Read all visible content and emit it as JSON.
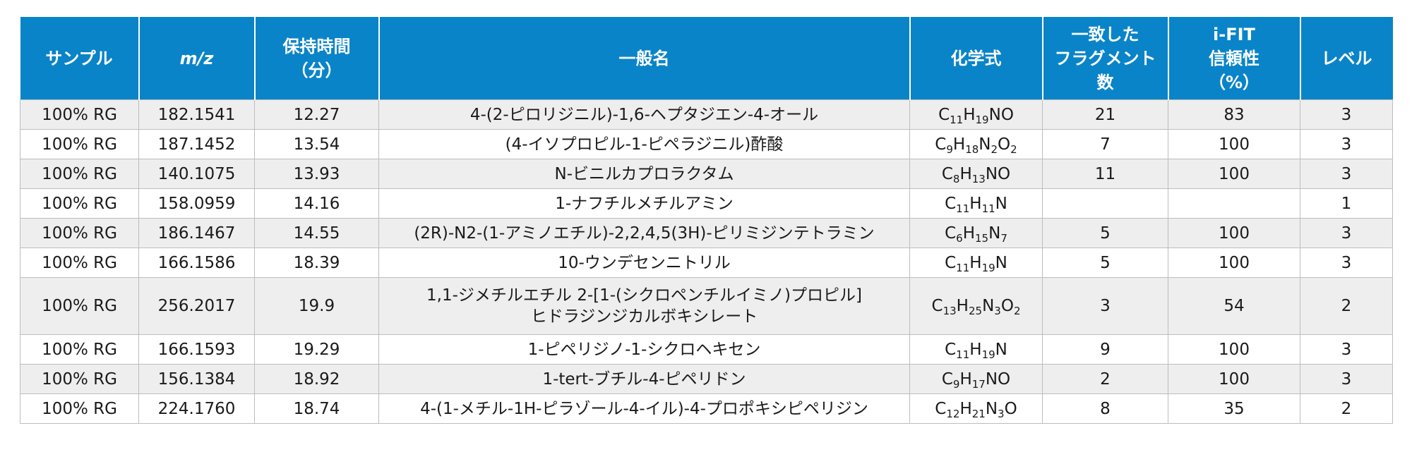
{
  "table": {
    "headers": [
      {
        "key": "sample",
        "lines": [
          "サンプル"
        ]
      },
      {
        "key": "mz",
        "lines": [
          "m/z"
        ]
      },
      {
        "key": "rt",
        "lines": [
          "保持時間",
          "（分）"
        ]
      },
      {
        "key": "name",
        "lines": [
          "一般名"
        ]
      },
      {
        "key": "formula",
        "lines": [
          "化学式"
        ]
      },
      {
        "key": "fragments",
        "lines": [
          "一致した",
          "フラグメント数"
        ]
      },
      {
        "key": "ifit",
        "lines": [
          "i-FIT",
          "信頼性",
          "（%）"
        ]
      },
      {
        "key": "level",
        "lines": [
          "レベル"
        ]
      }
    ],
    "rows": [
      {
        "sample": "100% RG",
        "mz": "182.1541",
        "rt": "12.27",
        "name": [
          "4-(2-ピロリジニル)-1,6-ヘプタジエン-4-オール"
        ],
        "formula": [
          [
            "C",
            ""
          ],
          [
            "11",
            "sub"
          ],
          [
            "H",
            ""
          ],
          [
            "19",
            "sub"
          ],
          [
            "NO",
            ""
          ]
        ],
        "fragments": "21",
        "ifit": "83",
        "level": "3"
      },
      {
        "sample": "100% RG",
        "mz": "187.1452",
        "rt": "13.54",
        "name": [
          "(4-イソプロピル-1-ピペラジニル)酢酸"
        ],
        "formula": [
          [
            "C",
            ""
          ],
          [
            "9",
            "sub"
          ],
          [
            "H",
            ""
          ],
          [
            "18",
            "sub"
          ],
          [
            "N",
            ""
          ],
          [
            "2",
            "sub"
          ],
          [
            "O",
            ""
          ],
          [
            "2",
            "sub"
          ]
        ],
        "fragments": "7",
        "ifit": "100",
        "level": "3"
      },
      {
        "sample": "100% RG",
        "mz": "140.1075",
        "rt": "13.93",
        "name": [
          "N-ビニルカプロラクタム"
        ],
        "formula": [
          [
            "C",
            ""
          ],
          [
            "8",
            "sub"
          ],
          [
            "H",
            ""
          ],
          [
            "13",
            "sub"
          ],
          [
            "NO",
            ""
          ]
        ],
        "fragments": "11",
        "ifit": "100",
        "level": "3"
      },
      {
        "sample": "100% RG",
        "mz": "158.0959",
        "rt": "14.16",
        "name": [
          "1-ナフチルメチルアミン"
        ],
        "formula": [
          [
            "C",
            ""
          ],
          [
            "11",
            "sub"
          ],
          [
            "H",
            ""
          ],
          [
            "11",
            "sub"
          ],
          [
            "N",
            ""
          ]
        ],
        "fragments": "",
        "ifit": "",
        "level": "1"
      },
      {
        "sample": "100% RG",
        "mz": "186.1467",
        "rt": "14.55",
        "name": [
          "(2R)-N2-(1-アミノエチル)-2,2,4,5(3H)-ピリミジンテトラミン"
        ],
        "formula": [
          [
            "C",
            ""
          ],
          [
            "6",
            "sub"
          ],
          [
            "H",
            ""
          ],
          [
            "15",
            "sub"
          ],
          [
            "N",
            ""
          ],
          [
            "7",
            "sub"
          ]
        ],
        "fragments": "5",
        "ifit": "100",
        "level": "3"
      },
      {
        "sample": "100% RG",
        "mz": "166.1586",
        "rt": "18.39",
        "name": [
          "10-ウンデセンニトリル"
        ],
        "formula": [
          [
            "C",
            ""
          ],
          [
            "11",
            "sub"
          ],
          [
            "H",
            ""
          ],
          [
            "19",
            "sub"
          ],
          [
            "N",
            ""
          ]
        ],
        "fragments": "5",
        "ifit": "100",
        "level": "3"
      },
      {
        "sample": "100% RG",
        "mz": "256.2017",
        "rt": "19.9",
        "name": [
          "1,1-ジメチルエチル 2-[1-(シクロペンチルイミノ)プロピル]",
          "ヒドラジンジカルボキシレート"
        ],
        "formula": [
          [
            "C",
            ""
          ],
          [
            "13",
            "sub"
          ],
          [
            "H",
            ""
          ],
          [
            "25",
            "sub"
          ],
          [
            "N",
            ""
          ],
          [
            "3",
            "sub"
          ],
          [
            "O",
            ""
          ],
          [
            "2",
            "sub"
          ]
        ],
        "fragments": "3",
        "ifit": "54",
        "level": "2"
      },
      {
        "sample": "100% RG",
        "mz": "166.1593",
        "rt": "19.29",
        "name": [
          "1-ピペリジノ-1-シクロヘキセン"
        ],
        "formula": [
          [
            "C",
            ""
          ],
          [
            "11",
            "sub"
          ],
          [
            "H",
            ""
          ],
          [
            "19",
            "sub"
          ],
          [
            "N",
            ""
          ]
        ],
        "fragments": "9",
        "ifit": "100",
        "level": "3"
      },
      {
        "sample": "100% RG",
        "mz": "156.1384",
        "rt": "18.92",
        "name": [
          "1-tert-ブチル-4-ピペリドン"
        ],
        "formula": [
          [
            "C",
            ""
          ],
          [
            "9",
            "sub"
          ],
          [
            "H",
            ""
          ],
          [
            "17",
            "sub"
          ],
          [
            "NO",
            ""
          ]
        ],
        "fragments": "2",
        "ifit": "100",
        "level": "3"
      },
      {
        "sample": "100% RG",
        "mz": "224.1760",
        "rt": "18.74",
        "name": [
          "4-(1-メチル-1H-ピラゾール-4-イル)-4-プロポキシピペリジン"
        ],
        "formula": [
          [
            "C",
            ""
          ],
          [
            "12",
            "sub"
          ],
          [
            "H",
            ""
          ],
          [
            "21",
            "sub"
          ],
          [
            "N",
            ""
          ],
          [
            "3",
            "sub"
          ],
          [
            "O",
            ""
          ]
        ],
        "fragments": "8",
        "ifit": "35",
        "level": "2"
      }
    ]
  },
  "colors": {
    "header_bg": "#0a84c8",
    "header_text": "#ffffff",
    "row_alt": "#eeeeee",
    "grid": "#bdbdbd"
  }
}
